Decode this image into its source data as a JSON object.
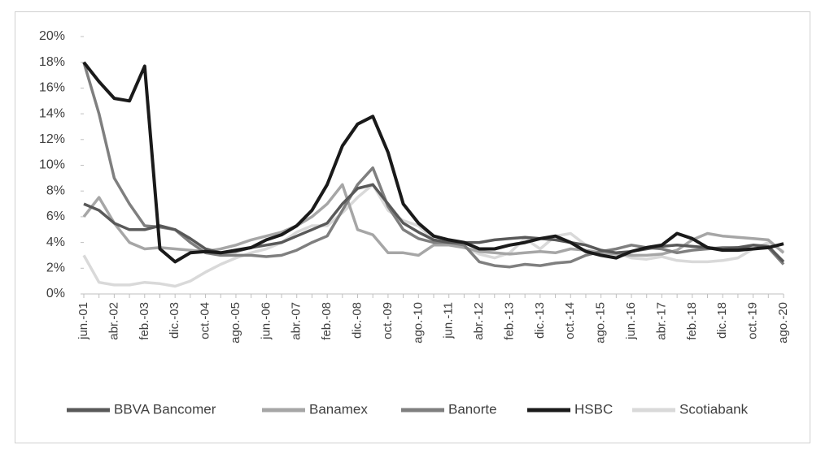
{
  "chart_data": {
    "type": "line",
    "categories": [
      "jun.-01",
      null,
      "abr.-02",
      null,
      "feb.-03",
      null,
      "dic.-03",
      null,
      "oct.-04",
      null,
      "ago.-05",
      null,
      "jun.-06",
      null,
      "abr.-07",
      null,
      "feb.-08",
      null,
      "dic.-08",
      null,
      "oct.-09",
      null,
      "ago.-10",
      null,
      "jun.-11",
      null,
      "abr.-12",
      null,
      "feb.-13",
      null,
      "dic.-13",
      null,
      "oct.-14",
      null,
      "ago.-15",
      null,
      "jun.-16",
      null,
      "abr.-17",
      null,
      "feb.-18",
      null,
      "dic.-18",
      null,
      "oct.-19",
      null,
      "ago.-20"
    ],
    "series": [
      {
        "name": "BBVA Bancomer",
        "color": "#595959",
        "values": [
          7,
          6.5,
          5.5,
          5,
          5,
          5.3,
          5,
          4.3,
          3.5,
          3.2,
          3.3,
          3.6,
          3.8,
          4,
          4.5,
          5,
          5.5,
          7,
          8.2,
          8.5,
          7,
          5.5,
          4.8,
          4.2,
          4,
          4,
          4,
          4.2,
          4.3,
          4.4,
          4.3,
          4.2,
          4,
          3.8,
          3.4,
          3.2,
          3.3,
          3.5,
          3.7,
          3.8,
          3.7,
          3.6,
          3.5,
          3.6,
          3.8,
          3.7,
          2.5
        ]
      },
      {
        "name": "Banamex",
        "color": "#a6a6a6",
        "values": [
          6,
          7.5,
          5.5,
          4,
          3.5,
          3.6,
          3.5,
          3.4,
          3.3,
          3.5,
          3.8,
          4.2,
          4.5,
          4.8,
          5.3,
          6,
          7,
          8.5,
          5,
          4.6,
          3.2,
          3.2,
          3,
          3.8,
          3.8,
          3.6,
          3.3,
          3.2,
          3.1,
          3.2,
          3.3,
          3.2,
          3.5,
          3.4,
          3.2,
          3.1,
          3,
          3,
          3.1,
          3.4,
          4.2,
          4.7,
          4.5,
          4.4,
          4.3,
          4.2,
          3.2
        ]
      },
      {
        "name": "Banorte",
        "color": "#7f7f7f",
        "values": [
          18,
          14,
          9,
          7,
          5.3,
          5.2,
          5,
          4,
          3.2,
          3,
          3,
          3,
          2.9,
          3,
          3.4,
          4,
          4.5,
          6.5,
          8.5,
          9.8,
          6.8,
          5,
          4.3,
          4,
          4,
          3.8,
          2.5,
          2.2,
          2.1,
          2.3,
          2.2,
          2.4,
          2.5,
          3,
          3.3,
          3.5,
          3.8,
          3.6,
          3.5,
          3.2,
          3.4,
          3.5,
          3.6,
          3.6,
          3.5,
          3.6,
          2.3
        ]
      },
      {
        "name": "HSBC",
        "color": "#1a1a1a",
        "values": [
          18,
          16.5,
          15.2,
          15,
          17.7,
          3.5,
          2.5,
          3.2,
          3.3,
          3.2,
          3.4,
          3.6,
          4.2,
          4.6,
          5.3,
          6.5,
          8.5,
          11.5,
          13.2,
          13.8,
          11,
          7,
          5.5,
          4.5,
          4.2,
          4,
          3.5,
          3.5,
          3.8,
          4,
          4.3,
          4.5,
          4,
          3.3,
          3,
          2.8,
          3.3,
          3.6,
          3.8,
          4.7,
          4.3,
          3.6,
          3.4,
          3.4,
          3.5,
          3.6,
          3.9
        ]
      },
      {
        "name": "Scotiabank",
        "color": "#d9d9d9",
        "values": [
          3,
          0.9,
          0.7,
          0.7,
          0.9,
          0.8,
          0.6,
          1,
          1.7,
          2.3,
          2.8,
          3.2,
          3.5,
          4,
          4.8,
          5.3,
          5.3,
          6.3,
          7.5,
          8.5,
          6.5,
          5.7,
          5.3,
          4.2,
          3.9,
          3.7,
          3.1,
          2.8,
          3.2,
          4.3,
          3.5,
          4.5,
          4.7,
          3.8,
          3.4,
          3.2,
          2.8,
          2.7,
          2.9,
          2.6,
          2.5,
          2.5,
          2.6,
          2.8,
          3.5,
          4,
          3.3
        ]
      }
    ],
    "ylim": [
      0,
      20
    ],
    "yticks": [
      {
        "value": 0,
        "label": "0%"
      },
      {
        "value": 2,
        "label": "2%"
      },
      {
        "value": 4,
        "label": "4%"
      },
      {
        "value": 6,
        "label": "6%"
      },
      {
        "value": 8,
        "label": "8%"
      },
      {
        "value": 10,
        "label": "10%"
      },
      {
        "value": 12,
        "label": "12%"
      },
      {
        "value": 14,
        "label": "14%"
      },
      {
        "value": 16,
        "label": "16%"
      },
      {
        "value": 18,
        "label": "18%"
      },
      {
        "value": 20,
        "label": "20%"
      }
    ],
    "legend": "bottom"
  }
}
